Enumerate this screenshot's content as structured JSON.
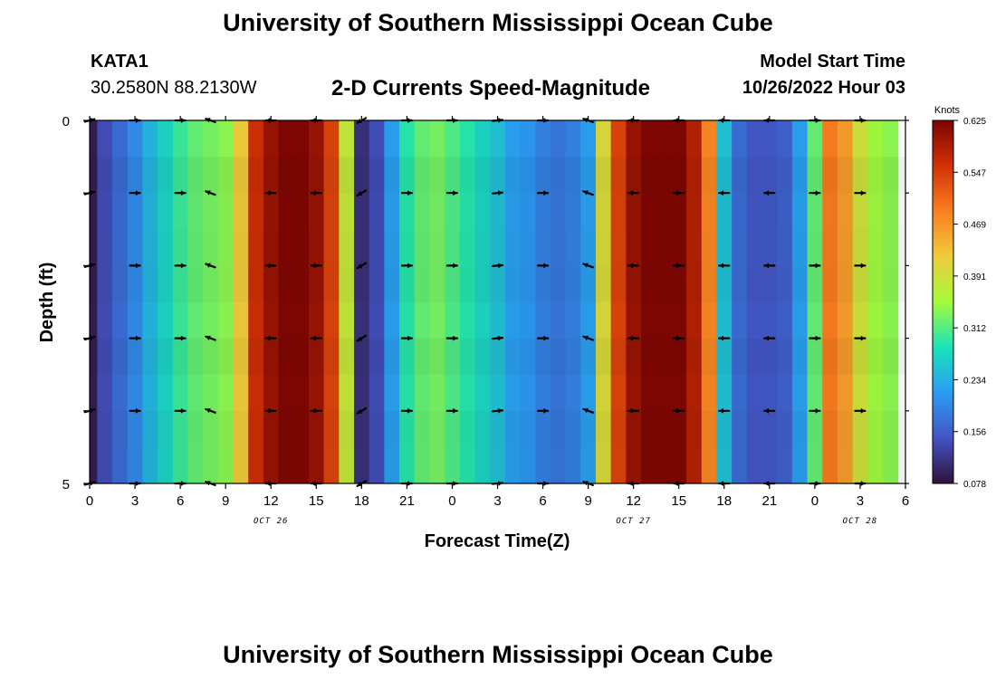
{
  "header": {
    "title": "University of Southern Mississippi Ocean Cube",
    "station_id": "KATA1",
    "station_coords": "30.2580N  88.2130W",
    "subtitle": "2-D Currents Speed-Magnitude",
    "model_start_label": "Model Start Time",
    "model_start_value": "10/26/2022 Hour 03"
  },
  "footer": {
    "title": "University of Southern Mississippi Ocean Cube"
  },
  "chart_data": {
    "type": "heatmap",
    "title": "2-D Currents Speed-Magnitude",
    "xlabel": "Forecast Time(Z)",
    "ylabel": "Depth (ft)",
    "x_hours": [
      0,
      54
    ],
    "ylim": [
      0,
      5
    ],
    "y_ticks": [
      "0",
      "5"
    ],
    "x_tick_labels": [
      "0",
      "3",
      "6",
      "9",
      "12",
      "15",
      "18",
      "21",
      "0",
      "3",
      "6",
      "9",
      "12",
      "15",
      "18",
      "21",
      "0",
      "3",
      "6"
    ],
    "date_labels": [
      {
        "hour": 12,
        "label": "OCT 26"
      },
      {
        "hour": 36,
        "label": "OCT 27"
      },
      {
        "hour": 51,
        "label": "OCT 28"
      }
    ],
    "colorbar": {
      "title": "Knots",
      "min": 0.078,
      "max": 0.625,
      "ticks": [
        "0.625",
        "0.547",
        "0.469",
        "0.391",
        "0.312",
        "0.234",
        "0.156",
        "0.078"
      ]
    },
    "speed_hourly_knots": [
      0.09,
      0.14,
      0.17,
      0.2,
      0.24,
      0.27,
      0.3,
      0.32,
      0.33,
      0.34,
      0.42,
      0.56,
      0.6,
      0.62,
      0.62,
      0.6,
      0.54,
      0.38,
      0.11,
      0.14,
      0.22,
      0.29,
      0.32,
      0.33,
      0.31,
      0.29,
      0.27,
      0.25,
      0.22,
      0.21,
      0.19,
      0.18,
      0.19,
      0.22,
      0.4,
      0.54,
      0.6,
      0.62,
      0.62,
      0.62,
      0.58,
      0.48,
      0.25,
      0.17,
      0.15,
      0.15,
      0.16,
      0.22,
      0.32,
      0.49,
      0.46,
      0.39,
      0.35,
      0.34,
      0.38
    ],
    "vector_depths_ft": [
      0,
      1,
      2,
      3,
      4,
      5
    ],
    "vectors": [
      {
        "hour": 0,
        "dir_deg": 15
      },
      {
        "hour": 3,
        "dir_deg": 0
      },
      {
        "hour": 6,
        "dir_deg": 0
      },
      {
        "hour": 8,
        "dir_deg": 160
      },
      {
        "hour": 12,
        "dir_deg": 180
      },
      {
        "hour": 15,
        "dir_deg": 180
      },
      {
        "hour": 18,
        "dir_deg": 210
      },
      {
        "hour": 21,
        "dir_deg": 0
      },
      {
        "hour": 24,
        "dir_deg": 0
      },
      {
        "hour": 27,
        "dir_deg": 5
      },
      {
        "hour": 30,
        "dir_deg": 0
      },
      {
        "hour": 33,
        "dir_deg": 160
      },
      {
        "hour": 36,
        "dir_deg": 180
      },
      {
        "hour": 39,
        "dir_deg": 180
      },
      {
        "hour": 42,
        "dir_deg": 180
      },
      {
        "hour": 45,
        "dir_deg": 180
      },
      {
        "hour": 48,
        "dir_deg": 0
      },
      {
        "hour": 51,
        "dir_deg": 0
      }
    ]
  }
}
